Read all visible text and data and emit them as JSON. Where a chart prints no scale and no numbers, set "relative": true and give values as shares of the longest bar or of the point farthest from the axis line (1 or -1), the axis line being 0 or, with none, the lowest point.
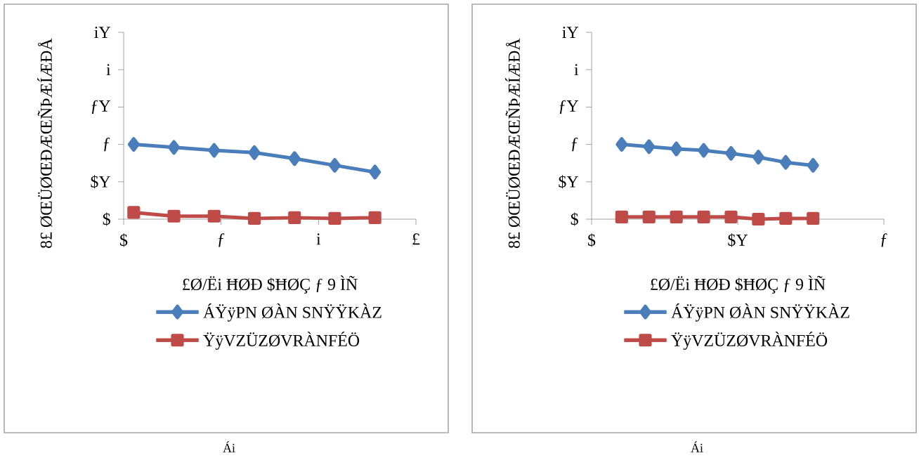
{
  "chart_data": [
    {
      "type": "line",
      "relative": true,
      "xlabel": "£Ø/Ëi ĦØÐ $ĦØÇ ƒ 9 ÌÑ",
      "ylabel": "8£ ØŒÜØŒÐÆŒÑÞÆÍÆÐÅ",
      "categories": [
        null,
        null,
        null,
        null,
        null,
        null,
        null
      ],
      "legend": "bottom",
      "series": [
        {
          "name": "ÁŸÿPN ØÀN SNŸŸKÀZ",
          "color": "#4a7ebb",
          "marker": "diamond",
          "values": [
            1.0,
            0.96,
            0.92,
            0.89,
            0.81,
            0.72,
            0.63
          ]
        },
        {
          "name": "ŸÿVZÜZØVRÀNFÉÖ",
          "color": "#be4b48",
          "marker": "square",
          "values": [
            0.09,
            0.04,
            0.04,
            0.01,
            0.02,
            0.01,
            0.02
          ]
        }
      ],
      "annotations": [
        "$",
        "$Y",
        "ƒ",
        "ƒY",
        "i",
        "iY",
        "$",
        "ƒ",
        "i",
        "£",
        "Ái"
      ]
    },
    {
      "type": "line",
      "relative": true,
      "xlabel": "£Ø/Ëi ĦØÐ $ĦØÇ ƒ 9 ÌÑ",
      "ylabel": "8£ ØŒÜØŒÐÆŒÑÞÆÍÆÐÅ",
      "categories": [
        null,
        null,
        null,
        null,
        null,
        null,
        null,
        null
      ],
      "legend": "bottom",
      "series": [
        {
          "name": "ÁŸÿPN ØÀN SNŸŸKÀZ",
          "color": "#4a7ebb",
          "marker": "diamond",
          "values": [
            1.0,
            0.97,
            0.94,
            0.92,
            0.88,
            0.83,
            0.76,
            0.72
          ]
        },
        {
          "name": "ŸÿVZÜZØVRÀNFÉÖ",
          "color": "#be4b48",
          "marker": "square",
          "values": [
            0.03,
            0.03,
            0.03,
            0.03,
            0.03,
            0.0,
            0.01,
            0.01
          ]
        }
      ],
      "annotations": [
        "$",
        "$Y",
        "ƒ",
        "ƒY",
        "i",
        "iY",
        "$",
        "$Y",
        "ƒ",
        "Ái"
      ]
    }
  ]
}
